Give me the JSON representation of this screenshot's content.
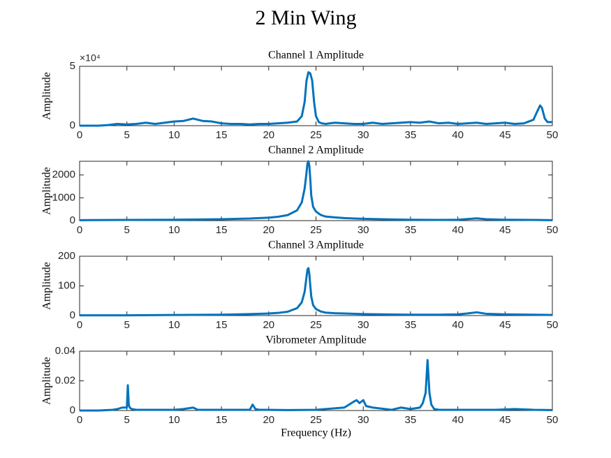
{
  "title": "2 Min Wing",
  "chart_data": [
    {
      "type": "line",
      "title": "Channel 1 Amplitude",
      "ylabel": "Amplitude",
      "y_multiplier": "×10⁴",
      "xlim": [
        0,
        50
      ],
      "xticks": [
        0,
        5,
        10,
        15,
        20,
        25,
        30,
        35,
        40,
        45,
        50
      ],
      "ylim": [
        0,
        50000
      ],
      "yticks": [
        0,
        {
          "value": 50000,
          "label": "5"
        }
      ],
      "grid": false,
      "series": [
        {
          "name": "Channel 1",
          "color": "#0072bd",
          "x": [
            0,
            1,
            2,
            3,
            4,
            5,
            6,
            7,
            8,
            9,
            10,
            11,
            12,
            13,
            14,
            15,
            16,
            17,
            18,
            19,
            20,
            21,
            22,
            23,
            23.5,
            23.8,
            24,
            24.2,
            24.4,
            24.6,
            24.8,
            25,
            25.3,
            25.6,
            26,
            27,
            28,
            29,
            30,
            31,
            32,
            33,
            34,
            35,
            36,
            37,
            38,
            39,
            40,
            41,
            42,
            43,
            44,
            45,
            46,
            47,
            47.5,
            48,
            48.4,
            48.7,
            48.9,
            49.2,
            49.5,
            50
          ],
          "values": [
            0,
            0,
            0,
            500,
            1500,
            1000,
            1500,
            2500,
            1500,
            2500,
            3500,
            4000,
            6000,
            4000,
            3500,
            2000,
            1500,
            1500,
            1000,
            1500,
            1500,
            2000,
            2500,
            3500,
            8000,
            20000,
            38000,
            45000,
            44000,
            38000,
            20000,
            8000,
            3000,
            2000,
            1500,
            2500,
            2000,
            1500,
            1500,
            2500,
            1500,
            2000,
            2500,
            3000,
            2500,
            3500,
            2000,
            2500,
            1500,
            2000,
            2500,
            1500,
            2000,
            2500,
            1500,
            2000,
            3500,
            5000,
            12000,
            17000,
            15000,
            6000,
            3000,
            3000
          ]
        }
      ]
    },
    {
      "type": "line",
      "title": "Channel 2 Amplitude",
      "ylabel": "Amplitude",
      "xlim": [
        0,
        50
      ],
      "xticks": [
        0,
        5,
        10,
        15,
        20,
        25,
        30,
        35,
        40,
        45,
        50
      ],
      "ylim": [
        0,
        2600
      ],
      "yticks": [
        0,
        1000,
        2000
      ],
      "grid": false,
      "series": [
        {
          "name": "Channel 2",
          "color": "#0072bd",
          "x": [
            0,
            5,
            10,
            15,
            18,
            20,
            21,
            22,
            23,
            23.5,
            23.8,
            24,
            24.1,
            24.2,
            24.3,
            24.4,
            24.5,
            24.7,
            25,
            25.5,
            26,
            27,
            28,
            30,
            32,
            35,
            38,
            40,
            41,
            42,
            43,
            45,
            48,
            50
          ],
          "values": [
            20,
            30,
            40,
            60,
            90,
            130,
            170,
            240,
            450,
            800,
            1400,
            2100,
            2500,
            2600,
            2400,
            1800,
            1100,
            600,
            400,
            250,
            180,
            140,
            110,
            80,
            60,
            40,
            30,
            40,
            70,
            100,
            60,
            40,
            30,
            20
          ]
        }
      ]
    },
    {
      "type": "line",
      "title": "Channel 3 Amplitude",
      "ylabel": "Amplitude",
      "xlim": [
        0,
        50
      ],
      "xticks": [
        0,
        5,
        10,
        15,
        20,
        25,
        30,
        35,
        40,
        45,
        50
      ],
      "ylim": [
        0,
        200
      ],
      "yticks": [
        0,
        100,
        200
      ],
      "grid": false,
      "series": [
        {
          "name": "Channel 3",
          "color": "#0072bd",
          "x": [
            0,
            5,
            10,
            15,
            18,
            20,
            21,
            22,
            23,
            23.5,
            23.8,
            24,
            24.1,
            24.2,
            24.3,
            24.4,
            24.5,
            24.7,
            25,
            25.5,
            26,
            27,
            28,
            30,
            32,
            35,
            38,
            40,
            41,
            42,
            43,
            45,
            48,
            50
          ],
          "values": [
            1,
            1,
            2,
            3,
            5,
            7,
            9,
            13,
            25,
            45,
            80,
            130,
            155,
            160,
            140,
            100,
            65,
            35,
            22,
            14,
            10,
            8,
            7,
            5,
            4,
            3,
            3,
            4,
            7,
            11,
            6,
            4,
            3,
            2
          ]
        }
      ]
    },
    {
      "type": "line",
      "title": "Vibrometer Amplitude",
      "ylabel": "Amplitude",
      "xlabel": "Frequency (Hz)",
      "xlim": [
        0,
        50
      ],
      "xticks": [
        0,
        5,
        10,
        15,
        20,
        25,
        30,
        35,
        40,
        45,
        50
      ],
      "ylim": [
        0,
        0.04
      ],
      "yticks": [
        0,
        0.02,
        0.04
      ],
      "grid": false,
      "series": [
        {
          "name": "Vibrometer",
          "color": "#0072bd",
          "x": [
            0,
            2,
            3.5,
            4,
            4.5,
            5,
            5.1,
            5.2,
            5.3,
            5.5,
            6,
            8,
            10,
            11,
            12,
            12.5,
            14,
            16,
            18,
            18.3,
            18.6,
            19,
            22,
            25,
            28,
            29,
            29.3,
            29.6,
            30,
            30.3,
            31,
            33,
            34,
            35,
            36,
            36.3,
            36.6,
            36.8,
            37,
            37.2,
            37.5,
            38,
            40,
            42,
            44,
            46,
            48,
            50
          ],
          "values": [
            0,
            0,
            0.0005,
            0.001,
            0.002,
            0.002,
            0.017,
            0.004,
            0.002,
            0.001,
            0.0005,
            0.0005,
            0.0005,
            0.001,
            0.002,
            0.0005,
            0.0005,
            0.0005,
            0.0005,
            0.004,
            0.001,
            0.0005,
            0.0003,
            0.0005,
            0.002,
            0.006,
            0.007,
            0.005,
            0.007,
            0.003,
            0.002,
            0.0005,
            0.002,
            0.001,
            0.002,
            0.005,
            0.012,
            0.034,
            0.012,
            0.004,
            0.001,
            0.0005,
            0.0005,
            0.0005,
            0.0005,
            0.001,
            0.0005,
            0.0003
          ]
        }
      ]
    }
  ]
}
